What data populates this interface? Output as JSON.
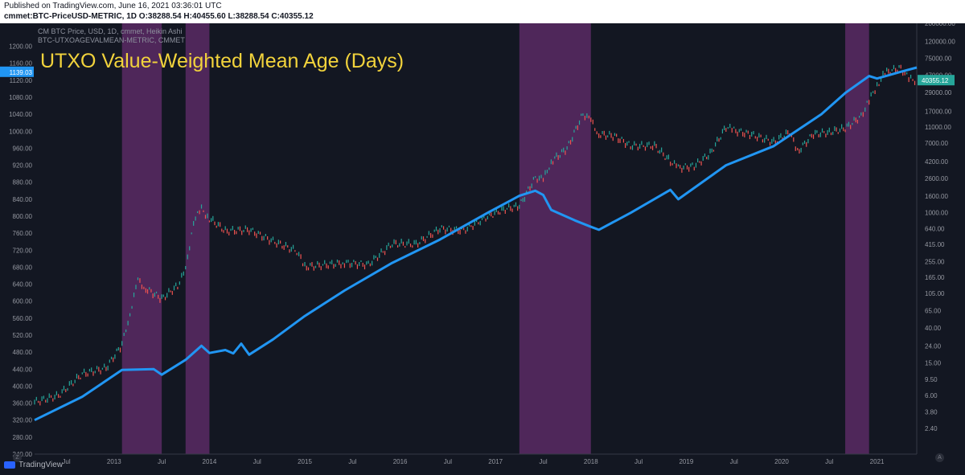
{
  "published": {
    "line1": "Published on TradingView.com, June 16, 2021 03:36:01 UTC",
    "line2": "cmmet:BTC-PriceUSD-METRIC, 1D O:38288.54 H:40455.60 L:38288.54 C:40355.12"
  },
  "legend": {
    "series1": "CM BTC Price, USD, 1D, cmmet, Heikin Ashi",
    "series2": "BTC-UTXOAGEVALMEAN-METRIC, CMMET"
  },
  "footer": {
    "logo_text": "TradingView",
    "corner_left": "Z",
    "corner_right": "A"
  },
  "colors": {
    "background": "#131722",
    "mean_age_line": "#2196f3",
    "candle_up": "#26a69a",
    "candle_down": "#ef5350",
    "shaded_region": "#5b2a64",
    "title": "#f2d33c",
    "age_badge": "#2196f3",
    "price_badge": "#26a69a"
  },
  "chart_data": {
    "type": "line",
    "title": "UTXO Value-Weighted Mean Age (Days)",
    "x_ticks": [
      "Jul",
      "2013",
      "Jul",
      "2014",
      "Jul",
      "2015",
      "Jul",
      "2016",
      "Jul",
      "2017",
      "Jul",
      "2018",
      "Jul",
      "2019",
      "Jul",
      "2020",
      "Jul",
      "2021"
    ],
    "xlim": [
      "2012-03",
      "2021-06"
    ],
    "left_axis": {
      "label": "",
      "ticks": [
        "1200.00",
        "1160.00",
        "1120.00",
        "1080.00",
        "1040.00",
        "1000.00",
        "960.00",
        "920.00",
        "880.00",
        "840.00",
        "800.00",
        "760.00",
        "720.00",
        "680.00",
        "640.00",
        "600.00",
        "560.00",
        "520.00",
        "480.00",
        "440.00",
        "400.00",
        "360.00",
        "320.00",
        "280.00",
        "240.00"
      ],
      "ylim": [
        240,
        1220
      ],
      "current_value": "1139.03"
    },
    "right_axis": {
      "label": "",
      "scale": "log",
      "ticks": [
        "200000.00",
        "120000.00",
        "75000.00",
        "47000.00",
        "29000.00",
        "17000.00",
        "11000.00",
        "7000.00",
        "4200.00",
        "2600.00",
        "1600.00",
        "1000.00",
        "640.00",
        "415.00",
        "255.00",
        "165.00",
        "105.00",
        "65.00",
        "40.00",
        "24.00",
        "15.00",
        "9.50",
        "6.00",
        "3.80",
        "2.40"
      ],
      "current_value": "40355.12"
    },
    "shaded_regions": [
      {
        "start": "2013-02",
        "end": "2013-07"
      },
      {
        "start": "2013-10",
        "end": "2014-01"
      },
      {
        "start": "2017-04",
        "end": "2018-01"
      },
      {
        "start": "2020-09",
        "end": "2020-12"
      }
    ],
    "series": [
      {
        "axis": "left",
        "values": [
          [
            "2012-03",
            320
          ],
          [
            "2012-09",
            375
          ],
          [
            "2013-02",
            438
          ],
          [
            "2013-06",
            440
          ],
          [
            "2013-07",
            427
          ],
          [
            "2013-10",
            462
          ],
          [
            "2013-12",
            495
          ],
          [
            "2014-01",
            478
          ],
          [
            "2014-03",
            485
          ],
          [
            "2014-04",
            477
          ],
          [
            "2014-05",
            500
          ],
          [
            "2014-06",
            474
          ],
          [
            "2014-09",
            510
          ],
          [
            "2015-01",
            565
          ],
          [
            "2015-06",
            625
          ],
          [
            "2015-12",
            690
          ],
          [
            "2016-06",
            745
          ],
          [
            "2016-12",
            808
          ],
          [
            "2017-04",
            848
          ],
          [
            "2017-06",
            860
          ],
          [
            "2017-07",
            850
          ],
          [
            "2017-08",
            815
          ],
          [
            "2017-11",
            790
          ],
          [
            "2018-01",
            775
          ],
          [
            "2018-02",
            768
          ],
          [
            "2018-06",
            808
          ],
          [
            "2018-11",
            862
          ],
          [
            "2018-12",
            840
          ],
          [
            "2019-06",
            920
          ],
          [
            "2019-12",
            965
          ],
          [
            "2020-06",
            1040
          ],
          [
            "2020-09",
            1090
          ],
          [
            "2020-12",
            1130
          ],
          [
            "2021-01",
            1124
          ],
          [
            "2021-04",
            1140
          ],
          [
            "2021-06",
            1150
          ]
        ]
      },
      {
        "axis": "right",
        "scale": "log",
        "values": [
          [
            "2012-03",
            5
          ],
          [
            "2012-06",
            6
          ],
          [
            "2012-09",
            11
          ],
          [
            "2012-12",
            13
          ],
          [
            "2013-02",
            25
          ],
          [
            "2013-03",
            60
          ],
          [
            "2013-04",
            150
          ],
          [
            "2013-05",
            120
          ],
          [
            "2013-07",
            90
          ],
          [
            "2013-09",
            130
          ],
          [
            "2013-10",
            200
          ],
          [
            "2013-11",
            800
          ],
          [
            "2013-12",
            1100
          ],
          [
            "2014-01",
            850
          ],
          [
            "2014-03",
            600
          ],
          [
            "2014-06",
            620
          ],
          [
            "2014-09",
            450
          ],
          [
            "2014-12",
            340
          ],
          [
            "2015-01",
            220
          ],
          [
            "2015-06",
            245
          ],
          [
            "2015-09",
            235
          ],
          [
            "2015-12",
            420
          ],
          [
            "2016-03",
            415
          ],
          [
            "2016-06",
            640
          ],
          [
            "2016-09",
            610
          ],
          [
            "2016-12",
            900
          ],
          [
            "2017-02",
            1100
          ],
          [
            "2017-04",
            1200
          ],
          [
            "2017-06",
            2700
          ],
          [
            "2017-07",
            2500
          ],
          [
            "2017-08",
            4200
          ],
          [
            "2017-10",
            6000
          ],
          [
            "2017-12",
            16000
          ],
          [
            "2018-01",
            13000
          ],
          [
            "2018-02",
            9000
          ],
          [
            "2018-04",
            8500
          ],
          [
            "2018-06",
            6500
          ],
          [
            "2018-09",
            6500
          ],
          [
            "2018-11",
            4200
          ],
          [
            "2018-12",
            3500
          ],
          [
            "2019-02",
            3700
          ],
          [
            "2019-04",
            5200
          ],
          [
            "2019-06",
            11000
          ],
          [
            "2019-07",
            10000
          ],
          [
            "2019-09",
            9000
          ],
          [
            "2019-12",
            7200
          ],
          [
            "2020-02",
            9500
          ],
          [
            "2020-03",
            5500
          ],
          [
            "2020-05",
            9000
          ],
          [
            "2020-07",
            9500
          ],
          [
            "2020-09",
            10500
          ],
          [
            "2020-11",
            15000
          ],
          [
            "2020-12",
            23000
          ],
          [
            "2021-01",
            35000
          ],
          [
            "2021-02",
            50000
          ],
          [
            "2021-04",
            58000
          ],
          [
            "2021-05",
            42000
          ],
          [
            "2021-06",
            40355
          ]
        ]
      }
    ]
  }
}
